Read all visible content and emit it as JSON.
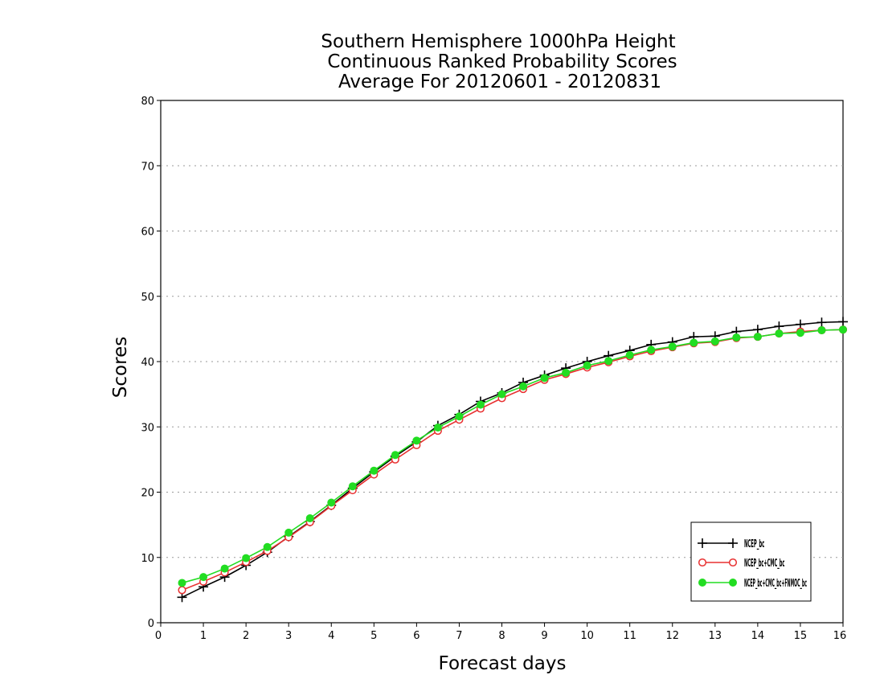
{
  "chart_data": {
    "type": "line",
    "title": [
      "Southern Hemisphere 1000hPa Height",
      "Continuous Ranked Probability Scores",
      "Average For 20120601 - 20120831"
    ],
    "xlabel": "Forecast days",
    "ylabel": "Scores",
    "xlim": [
      0,
      16
    ],
    "ylim": [
      0,
      80
    ],
    "xticks": [
      0,
      1,
      2,
      3,
      4,
      5,
      6,
      7,
      8,
      9,
      10,
      11,
      12,
      13,
      14,
      15,
      16
    ],
    "yticks": [
      0,
      10,
      20,
      30,
      40,
      50,
      60,
      70,
      80
    ],
    "grid": "horizontal-dotted",
    "legend_position": "bottom-right",
    "x": [
      0.5,
      1,
      1.5,
      2,
      2.5,
      3,
      3.5,
      4,
      4.5,
      5,
      5.5,
      6,
      6.5,
      7,
      7.5,
      8,
      8.5,
      9,
      9.5,
      10,
      10.5,
      11,
      11.5,
      12,
      12.5,
      13,
      13.5,
      14,
      14.5,
      15,
      15.5,
      16
    ],
    "series": [
      {
        "name": "NCEP_bc",
        "color": "#000000",
        "marker": "plus",
        "values": [
          3.9,
          5.5,
          7.0,
          8.8,
          10.8,
          13.2,
          15.5,
          18.0,
          20.6,
          23.1,
          25.5,
          27.7,
          30.2,
          31.9,
          33.9,
          35.2,
          36.8,
          37.9,
          39.0,
          40.0,
          40.9,
          41.7,
          42.6,
          43.0,
          43.8,
          43.9,
          44.6,
          44.9,
          45.4,
          45.7,
          46.0,
          46.1
        ]
      },
      {
        "name": "NCEP_bc+CMC_bc",
        "color": "#e83030",
        "marker": "open-circle",
        "values": [
          5.0,
          6.3,
          7.7,
          9.3,
          11.0,
          13.1,
          15.4,
          17.9,
          20.3,
          22.7,
          25.0,
          27.2,
          29.4,
          31.1,
          32.8,
          34.4,
          35.8,
          37.2,
          38.1,
          39.1,
          39.9,
          40.8,
          41.6,
          42.2,
          42.8,
          43.0,
          43.6,
          43.8,
          44.3,
          44.6,
          44.8,
          44.9
        ]
      },
      {
        "name": "NCEP_bc+CMC_bc+FNMOC_bc",
        "color": "#22dd22",
        "marker": "filled-circle",
        "values": [
          6.1,
          7.0,
          8.3,
          9.9,
          11.6,
          13.8,
          16.0,
          18.4,
          20.9,
          23.3,
          25.7,
          27.9,
          29.9,
          31.6,
          33.4,
          35.0,
          36.2,
          37.5,
          38.3,
          39.4,
          40.1,
          41.0,
          41.8,
          42.3,
          42.9,
          43.1,
          43.7,
          43.8,
          44.3,
          44.4,
          44.8,
          44.9
        ]
      }
    ]
  }
}
